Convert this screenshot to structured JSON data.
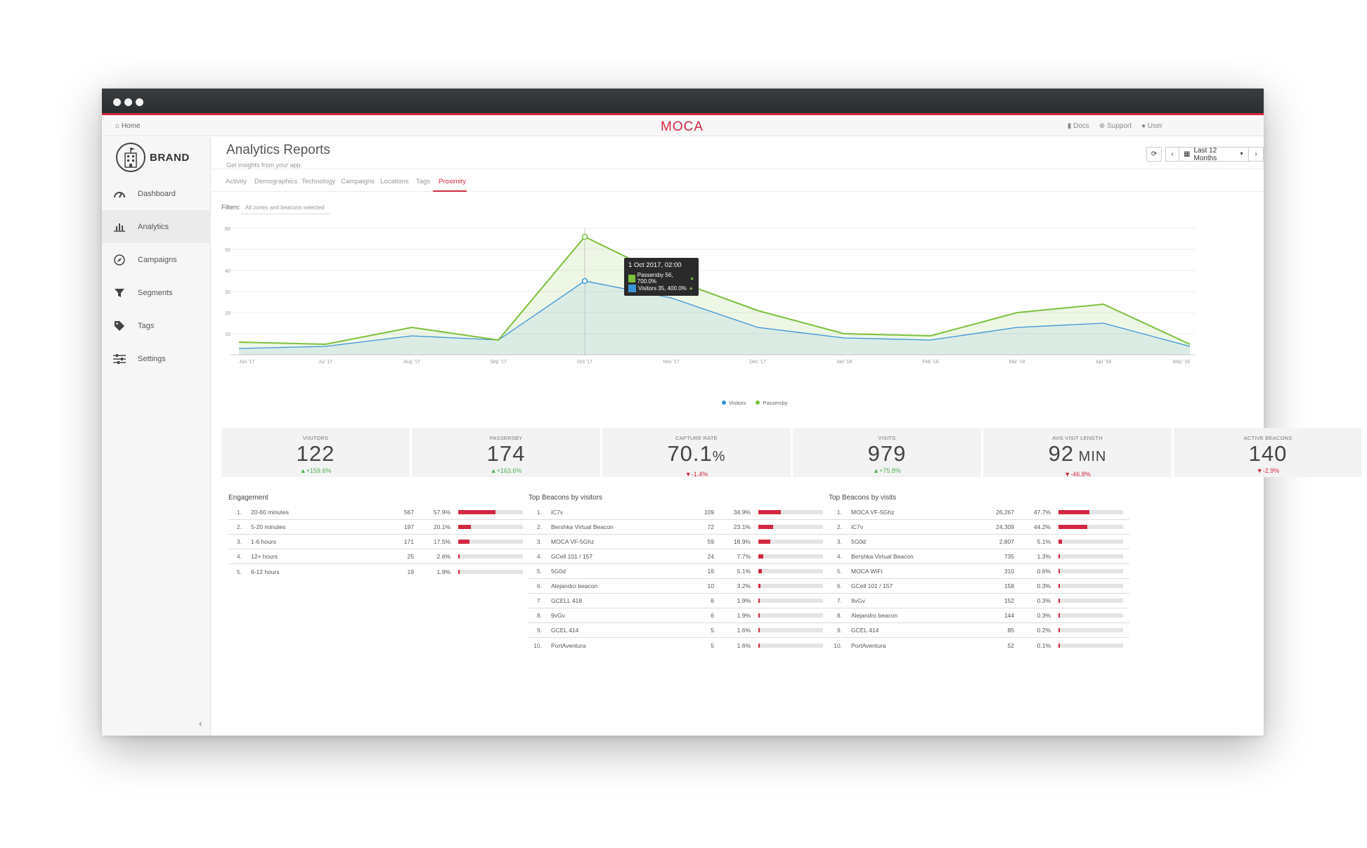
{
  "topnav": {
    "home": "Home",
    "logo": "MOCA",
    "docs": "Docs",
    "support": "Support",
    "user": "User"
  },
  "sidebar": {
    "brand": "BRAND",
    "items": [
      {
        "label": "Dashboard",
        "icon": "gauge-icon"
      },
      {
        "label": "Analytics",
        "icon": "bar-chart-icon",
        "active": true
      },
      {
        "label": "Campaigns",
        "icon": "compass-icon"
      },
      {
        "label": "Segments",
        "icon": "funnel-icon"
      },
      {
        "label": "Tags",
        "icon": "tag-icon"
      },
      {
        "label": "Settings",
        "icon": "sliders-icon"
      }
    ]
  },
  "header": {
    "title": "Analytics Reports",
    "subtitle": "Get insights from your app.",
    "date_range": "Last 12 Months"
  },
  "tabs": [
    "Activity",
    "Demographics",
    "Technology",
    "Campaigns",
    "Locations",
    "Tags",
    "Proximity"
  ],
  "active_tab": "Proximity",
  "filters": {
    "label": "Filters:",
    "value": "All zones and beacons selected"
  },
  "tooltip": {
    "title": "1 Oct 2017, 02:00",
    "rows": [
      {
        "text": "Passersby 56, 700.0%",
        "color": "#7cc13c"
      },
      {
        "text": "Visitors 35, 400.0%",
        "color": "#3a94d8"
      }
    ]
  },
  "chart_data": {
    "type": "area",
    "x": [
      "Jun '17",
      "Jul '17",
      "Aug '17",
      "Sep '17",
      "Oct '17",
      "Nov '17",
      "Dec '17",
      "Jan '18",
      "Feb '18",
      "Mar '18",
      "Apr '18",
      "May '18"
    ],
    "ylim": [
      0,
      60
    ],
    "yticks": [
      10,
      20,
      30,
      40,
      50,
      60
    ],
    "grid": true,
    "legend_position": "bottom",
    "series": [
      {
        "name": "Visitors",
        "color": "#3a94d8",
        "values": [
          3,
          4,
          9,
          7,
          35,
          27,
          13,
          8,
          7,
          13,
          15,
          4
        ]
      },
      {
        "name": "Passersby",
        "color": "#7cc13c",
        "values": [
          6,
          5,
          13,
          7,
          56,
          36,
          21,
          10,
          9,
          20,
          24,
          5
        ]
      }
    ]
  },
  "kpis": [
    {
      "label": "VISITORS",
      "value": "122",
      "unit": "",
      "delta": "+159.6%",
      "dir": "up"
    },
    {
      "label": "PASSERSBY",
      "value": "174",
      "unit": "",
      "delta": "+163.6%",
      "dir": "up"
    },
    {
      "label": "CAPTURE RATE",
      "value": "70.1",
      "unit": "%",
      "delta": "-1.4%",
      "dir": "down"
    },
    {
      "label": "VISITS",
      "value": "979",
      "unit": "",
      "delta": "+75.8%",
      "dir": "up"
    },
    {
      "label": "AVG VISIT LENGTH",
      "value": "92",
      "unit": " MIN",
      "delta": "-46.8%",
      "dir": "down"
    },
    {
      "label": "ACTIVE BEACONS",
      "value": "140",
      "unit": "",
      "delta": "-2.9%",
      "dir": "down"
    }
  ],
  "tables": [
    {
      "title": "Engagement",
      "rows": [
        {
          "rank": "1.",
          "name": "20-60 minutes",
          "count": "567",
          "pct": "57.9%",
          "frac": 0.579
        },
        {
          "rank": "2.",
          "name": "5-20 minutes",
          "count": "197",
          "pct": "20.1%",
          "frac": 0.201
        },
        {
          "rank": "3.",
          "name": "1-6 hours",
          "count": "171",
          "pct": "17.5%",
          "frac": 0.175
        },
        {
          "rank": "4.",
          "name": "12+ hours",
          "count": "25",
          "pct": "2.6%",
          "frac": 0.026
        },
        {
          "rank": "5.",
          "name": "6-12 hours",
          "count": "19",
          "pct": "1.9%",
          "frac": 0.019
        }
      ]
    },
    {
      "title": "Top Beacons by visitors",
      "rows": [
        {
          "rank": "1.",
          "name": "iC7v",
          "count": "109",
          "pct": "34.9%",
          "frac": 0.349
        },
        {
          "rank": "2.",
          "name": "Bershka Virtual Beacon",
          "count": "72",
          "pct": "23.1%",
          "frac": 0.231
        },
        {
          "rank": "3.",
          "name": "MOCA VF-5Ghz",
          "count": "59",
          "pct": "18.9%",
          "frac": 0.189
        },
        {
          "rank": "4.",
          "name": "GCell 101 / 157",
          "count": "24",
          "pct": "7.7%",
          "frac": 0.077
        },
        {
          "rank": "5.",
          "name": "5G0d",
          "count": "16",
          "pct": "5.1%",
          "frac": 0.051
        },
        {
          "rank": "6.",
          "name": "Alejandro beacon",
          "count": "10",
          "pct": "3.2%",
          "frac": 0.032
        },
        {
          "rank": "7.",
          "name": "GCELL 418",
          "count": "6",
          "pct": "1.9%",
          "frac": 0.019
        },
        {
          "rank": "8.",
          "name": "9vGv",
          "count": "6",
          "pct": "1.9%",
          "frac": 0.019
        },
        {
          "rank": "9.",
          "name": "GCEL 414",
          "count": "5",
          "pct": "1.6%",
          "frac": 0.016
        },
        {
          "rank": "10.",
          "name": "PortAventura",
          "count": "5",
          "pct": "1.6%",
          "frac": 0.016
        }
      ]
    },
    {
      "title": "Top Beacons by visits",
      "rows": [
        {
          "rank": "1.",
          "name": "MOCA VF-5Ghz",
          "count": "26,267",
          "pct": "47.7%",
          "frac": 0.477
        },
        {
          "rank": "2.",
          "name": "iC7v",
          "count": "24,309",
          "pct": "44.2%",
          "frac": 0.442
        },
        {
          "rank": "3.",
          "name": "5G0d",
          "count": "2,807",
          "pct": "5.1%",
          "frac": 0.051
        },
        {
          "rank": "4.",
          "name": "Bershka Virtual Beacon",
          "count": "735",
          "pct": "1.3%",
          "frac": 0.013
        },
        {
          "rank": "5.",
          "name": "MOCA WiFi",
          "count": "310",
          "pct": "0.6%",
          "frac": 0.006
        },
        {
          "rank": "6.",
          "name": "GCell 101 / 157",
          "count": "158",
          "pct": "0.3%",
          "frac": 0.003
        },
        {
          "rank": "7.",
          "name": "9vGv",
          "count": "152",
          "pct": "0.3%",
          "frac": 0.003
        },
        {
          "rank": "8.",
          "name": "Alejandro beacon",
          "count": "144",
          "pct": "0.3%",
          "frac": 0.003
        },
        {
          "rank": "9.",
          "name": "GCEL 414",
          "count": "85",
          "pct": "0.2%",
          "frac": 0.002
        },
        {
          "rank": "10.",
          "name": "PortAventura",
          "count": "52",
          "pct": "0.1%",
          "frac": 0.001
        }
      ]
    }
  ]
}
